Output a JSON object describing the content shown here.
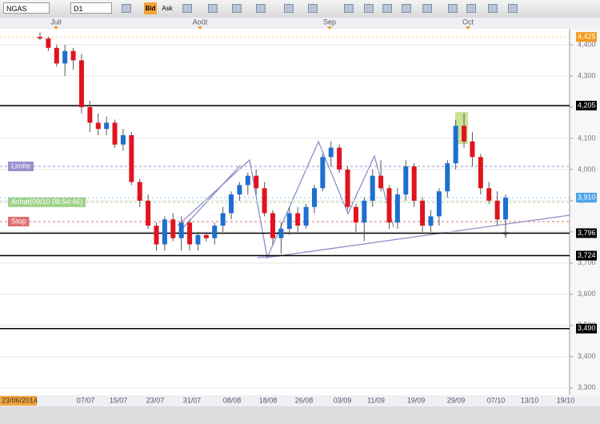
{
  "toolbar": {
    "symbol": "NGAS",
    "timeframe": "D1",
    "bid": "Bid",
    "ask": "Ask"
  },
  "chart_data": {
    "type": "candlestick",
    "months": [
      "Juil",
      "Août",
      "Sep",
      "Oct"
    ],
    "start_label": "23/06/2014",
    "x_labels": [
      "07/07",
      "15/07",
      "23/07",
      "31/07",
      "08/08",
      "18/08",
      "26/08",
      "03/09",
      "11/09",
      "19/09",
      "29/09",
      "07/10",
      "13/10",
      "19/10"
    ],
    "up_color": "#1e6fd0",
    "down_color": "#e0141e",
    "open": [
      4425,
      4420,
      4390,
      4340,
      4380,
      4350,
      4200,
      4150,
      4130,
      4150,
      4080,
      4110,
      3960,
      3900,
      3820,
      3760,
      3840,
      3780,
      3830,
      3760,
      3790,
      3780,
      3820,
      3860,
      3920,
      3950,
      3980,
      3940,
      3860,
      3780,
      3810,
      3860,
      3820,
      3880,
      3940,
      4040,
      4070,
      4000,
      3880,
      3830,
      3900,
      3980,
      3940,
      3830,
      3920,
      4010,
      3900,
      3820,
      3850,
      3930,
      4020,
      4140,
      4090,
      4040,
      3940,
      3900,
      3840
    ],
    "high": [
      4440,
      4425,
      4400,
      4400,
      4390,
      4370,
      4220,
      4180,
      4170,
      4160,
      4130,
      4120,
      3970,
      3920,
      3830,
      3850,
      3860,
      3850,
      3840,
      3800,
      3800,
      3830,
      3880,
      3930,
      3960,
      3990,
      4000,
      3960,
      3870,
      3830,
      3880,
      3880,
      3890,
      3950,
      4050,
      4090,
      4080,
      4010,
      3890,
      3910,
      4000,
      4030,
      3950,
      3940,
      4030,
      4020,
      3910,
      3870,
      3940,
      4030,
      4160,
      4180,
      4120,
      4050,
      3960,
      3930,
      3920
    ],
    "low": [
      4415,
      4380,
      4330,
      4300,
      4320,
      4180,
      4120,
      4110,
      4110,
      4070,
      4060,
      3950,
      3880,
      3810,
      3740,
      3740,
      3770,
      3740,
      3740,
      3740,
      3770,
      3760,
      3800,
      3840,
      3900,
      3920,
      3920,
      3850,
      3760,
      3730,
      3790,
      3800,
      3810,
      3860,
      3930,
      4010,
      3990,
      3870,
      3800,
      3770,
      3880,
      3930,
      3810,
      3810,
      3900,
      3880,
      3800,
      3800,
      3820,
      3910,
      4000,
      4070,
      4010,
      3920,
      3890,
      3820,
      3780
    ],
    "close": [
      4420,
      4390,
      4340,
      4380,
      4350,
      4200,
      4150,
      4130,
      4150,
      4080,
      4110,
      3960,
      3900,
      3820,
      3760,
      3840,
      3780,
      3830,
      3760,
      3790,
      3780,
      3820,
      3860,
      3920,
      3950,
      3980,
      3940,
      3860,
      3780,
      3810,
      3860,
      3820,
      3880,
      3940,
      4040,
      4070,
      4000,
      3880,
      3830,
      3900,
      3980,
      3940,
      3830,
      3920,
      4010,
      3900,
      3820,
      3850,
      3930,
      4020,
      4140,
      4090,
      4040,
      3940,
      3900,
      3840,
      3910
    ],
    "ylim": [
      3297,
      4446
    ],
    "yticks": [
      {
        "value": 3300,
        "label": "3,300"
      },
      {
        "value": 3400,
        "label": "3,400"
      },
      {
        "value": 3500,
        "label": "3,500"
      },
      {
        "value": 3600,
        "label": "3,600"
      },
      {
        "value": 3700,
        "label": "3,700"
      },
      {
        "value": 3800,
        "label": "3,800"
      },
      {
        "value": 3900,
        "label": "3,900"
      },
      {
        "value": 4000,
        "label": "4,000"
      },
      {
        "value": 4100,
        "label": "4,100"
      },
      {
        "value": 4200,
        "label": "4,200"
      },
      {
        "value": 4300,
        "label": "4,300"
      },
      {
        "value": 4400,
        "label": "4,400"
      }
    ],
    "grid": true,
    "levels": [
      {
        "value": 4425,
        "label": "4,425",
        "color": "#f29a1d"
      },
      {
        "value": 4205,
        "label": "4,205",
        "color": "#000000"
      },
      {
        "value": 3910,
        "label": "3,910",
        "color": "#4aa3e8"
      },
      {
        "value": 3796,
        "label": "3,796",
        "color": "#000000"
      },
      {
        "value": 3724,
        "label": "3,724",
        "color": "#000000"
      },
      {
        "value": 3490,
        "label": "3,490",
        "color": "#000000"
      }
    ],
    "orders": [
      {
        "name": "Limite",
        "value": 4010,
        "color": "#9a8fd0"
      },
      {
        "name": "Achat(09/10 08:54:46)",
        "value": 3895,
        "color": "#9fd28a"
      },
      {
        "name": "Stop",
        "value": 3833,
        "color": "#e07070"
      }
    ]
  }
}
